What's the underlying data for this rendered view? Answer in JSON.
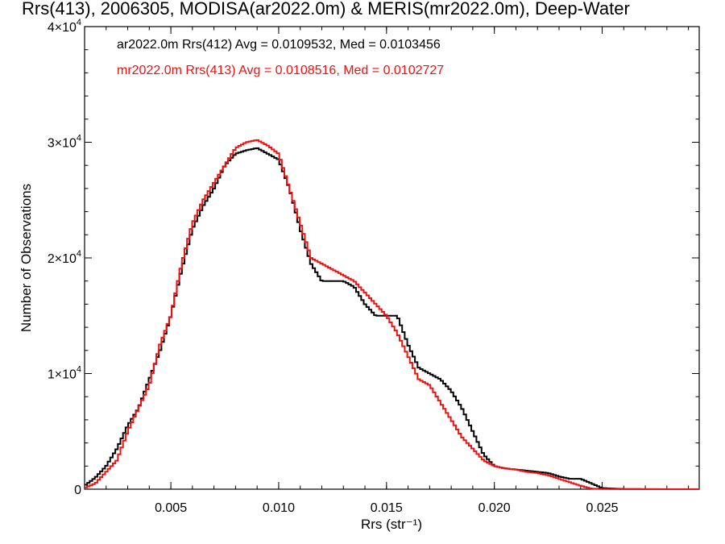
{
  "chart_data": {
    "type": "line",
    "title": "Rrs(413), 2006305, MODISA(ar2022.0m) & MERIS(mr2022.0m), Deep-Water",
    "xlabel": "Rrs (str⁻¹)",
    "ylabel": "Number of Observations",
    "xlim": [
      0.001,
      0.0295
    ],
    "ylim": [
      0,
      40000
    ],
    "x_ticks": [
      {
        "value": 0.005,
        "label": "0.005"
      },
      {
        "value": 0.01,
        "label": "0.010"
      },
      {
        "value": 0.015,
        "label": "0.015"
      },
      {
        "value": 0.02,
        "label": "0.020"
      },
      {
        "value": 0.025,
        "label": "0.025"
      }
    ],
    "y_ticks": [
      {
        "value": 0,
        "mant": "0",
        "exp": ""
      },
      {
        "value": 10000,
        "mant": "1×10",
        "exp": "4"
      },
      {
        "value": 20000,
        "mant": "2×10",
        "exp": "4"
      },
      {
        "value": 30000,
        "mant": "3×10",
        "exp": "4"
      },
      {
        "value": 40000,
        "mant": "4×10",
        "exp": "4"
      }
    ],
    "legend": [
      {
        "text": "ar2022.0m Rrs(412) Avg = 0.0109532, Med = 0.0103456",
        "color": "#000000"
      },
      {
        "text": "mr2022.0m Rrs(413) Avg = 0.0108516, Med = 0.0102727",
        "color": "#ee1111"
      }
    ],
    "legend_position": "top-left",
    "grid": false,
    "series": [
      {
        "color": "#000000",
        "style": "step",
        "x": [
          0.001,
          0.0015,
          0.002,
          0.0025,
          0.003,
          0.0035,
          0.004,
          0.0045,
          0.005,
          0.0055,
          0.006,
          0.0065,
          0.007,
          0.0075,
          0.008,
          0.0085,
          0.009,
          0.0095,
          0.01,
          0.0105,
          0.011,
          0.0115,
          0.012,
          0.0125,
          0.013,
          0.0135,
          0.014,
          0.0145,
          0.015,
          0.0155,
          0.016,
          0.0165,
          0.017,
          0.0175,
          0.018,
          0.0185,
          0.019,
          0.0195,
          0.02,
          0.0205,
          0.021,
          0.0215,
          0.022,
          0.0225,
          0.023,
          0.0235,
          0.024,
          0.0245,
          0.025,
          0.0255,
          0.026,
          0.027,
          0.028,
          0.029
        ],
        "y": [
          300,
          1000,
          2000,
          3500,
          5500,
          7000,
          9500,
          12000,
          15000,
          19000,
          22500,
          24500,
          26000,
          28000,
          29000,
          29300,
          29500,
          29000,
          28500,
          26000,
          22500,
          19500,
          18000,
          18000,
          18000,
          17500,
          16000,
          15000,
          15000,
          15000,
          12500,
          10500,
          10000,
          9500,
          8500,
          7000,
          5000,
          3000,
          2000,
          1800,
          1700,
          1600,
          1500,
          1400,
          1100,
          900,
          900,
          500,
          100,
          50,
          20,
          10,
          0,
          0
        ]
      },
      {
        "color": "#ee1111",
        "style": "step",
        "x": [
          0.001,
          0.0015,
          0.002,
          0.0025,
          0.003,
          0.0035,
          0.004,
          0.0045,
          0.005,
          0.0055,
          0.006,
          0.0065,
          0.007,
          0.0075,
          0.008,
          0.0085,
          0.009,
          0.0095,
          0.01,
          0.0105,
          0.011,
          0.0115,
          0.012,
          0.0125,
          0.013,
          0.0135,
          0.014,
          0.0145,
          0.015,
          0.0155,
          0.016,
          0.0165,
          0.017,
          0.0175,
          0.018,
          0.0185,
          0.019,
          0.0195,
          0.02,
          0.0205,
          0.021,
          0.0215,
          0.022,
          0.0225,
          0.023,
          0.0235,
          0.024,
          0.0245,
          0.025,
          0.0255,
          0.026,
          0.027,
          0.028,
          0.029
        ],
        "y": [
          100,
          500,
          1500,
          2500,
          5000,
          7000,
          9000,
          12500,
          15000,
          19500,
          23000,
          25000,
          26500,
          28000,
          29500,
          30000,
          30200,
          29700,
          29000,
          26000,
          23000,
          20000,
          19500,
          19000,
          18500,
          18000,
          17000,
          16000,
          15000,
          13500,
          11500,
          9500,
          9000,
          7500,
          6000,
          4500,
          3500,
          2500,
          2000,
          1800,
          1700,
          1500,
          1400,
          1200,
          900,
          600,
          300,
          50,
          20,
          10,
          0,
          0,
          0,
          0
        ]
      }
    ]
  }
}
